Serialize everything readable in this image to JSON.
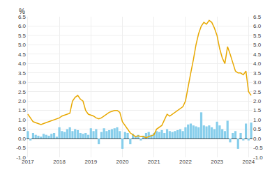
{
  "chart_data": {
    "type": "bar",
    "ylabel": "%",
    "categories": [
      "2017",
      null,
      null,
      null,
      null,
      null,
      null,
      null,
      null,
      null,
      null,
      null,
      "2018",
      null,
      null,
      null,
      null,
      null,
      null,
      null,
      null,
      null,
      null,
      null,
      "2019",
      null,
      null,
      null,
      null,
      null,
      null,
      null,
      null,
      null,
      null,
      null,
      "2020",
      null,
      null,
      null,
      null,
      null,
      null,
      null,
      null,
      null,
      null,
      null,
      "2021",
      null,
      null,
      null,
      null,
      null,
      null,
      null,
      null,
      null,
      null,
      null,
      "2022",
      null,
      null,
      null,
      null,
      null,
      null,
      null,
      null,
      null,
      null,
      null,
      "2023",
      null,
      null,
      null,
      null,
      null,
      null,
      null,
      null,
      null,
      null,
      null,
      "2024",
      null
    ],
    "series": [
      {
        "type": "bar",
        "color": "#87CEEB",
        "values": [
          0.4,
          -0.1,
          0.3,
          0.2,
          0.15,
          0.1,
          0.25,
          0.2,
          0.15,
          0.25,
          0.3,
          0.1,
          0.6,
          0.4,
          0.35,
          0.5,
          0.6,
          0.4,
          0.5,
          0.45,
          0.3,
          0.25,
          0.3,
          0.2,
          0.55,
          0.4,
          0.5,
          -0.3,
          0.35,
          0.55,
          0.4,
          0.45,
          0.5,
          0.55,
          0.6,
          0.4,
          -0.55,
          0.35,
          0.3,
          -0.3,
          0.25,
          0.1,
          0.2,
          -0.1,
          0.15,
          0.3,
          0.35,
          0.2,
          0.3,
          0.4,
          0.35,
          0.45,
          0.3,
          0.5,
          0.4,
          0.35,
          0.4,
          0.45,
          0.5,
          0.4,
          0.6,
          0.75,
          0.8,
          0.7,
          0.65,
          0.6,
          1.4,
          0.7,
          0.65,
          0.7,
          0.6,
          0.5,
          0.9,
          0.7,
          0.5,
          0.4,
          0.95,
          -0.2,
          0.3,
          0.4,
          -0.55,
          0.3,
          -0.1,
          0.8,
          -0.1,
          0.85
        ]
      },
      {
        "type": "line",
        "axis": "y2",
        "color": "#E8A800",
        "values": [
          1.3,
          1.1,
          0.9,
          0.85,
          0.8,
          0.75,
          0.8,
          0.85,
          0.9,
          0.95,
          1.0,
          1.05,
          1.1,
          1.2,
          1.25,
          1.3,
          1.35,
          2.0,
          2.2,
          2.3,
          2.1,
          2.0,
          1.5,
          1.3,
          1.25,
          1.2,
          1.1,
          1.05,
          1.1,
          1.2,
          1.3,
          1.4,
          1.45,
          1.5,
          1.5,
          1.4,
          0.9,
          0.7,
          0.5,
          0.3,
          0.2,
          0.1,
          0.15,
          0.1,
          0.1,
          0.05,
          0.1,
          0.15,
          0.2,
          0.5,
          0.6,
          0.7,
          1.0,
          1.3,
          1.2,
          1.3,
          1.4,
          1.5,
          1.6,
          1.7,
          2.0,
          2.8,
          3.5,
          4.2,
          5.0,
          5.6,
          6.0,
          6.2,
          6.1,
          6.3,
          6.2,
          5.9,
          5.5,
          4.8,
          4.3,
          4.0,
          4.9,
          4.5,
          4.0,
          3.6,
          3.5,
          3.5,
          3.4,
          3.6,
          2.5,
          2.3
        ]
      }
    ],
    "ylim": [
      -1.0,
      6.5
    ],
    "yticks": [
      {
        "value": -1,
        "label": "-1.0"
      },
      -0.5,
      {
        "value": 0,
        "label": "0.0"
      },
      0.5,
      {
        "value": 1,
        "label": "1.0"
      },
      1.5,
      {
        "value": 2,
        "label": "2.0"
      },
      2.5,
      {
        "value": 3,
        "label": "3.0"
      },
      3.5,
      {
        "value": 4,
        "label": "4.0"
      },
      4.5,
      {
        "value": 5,
        "label": "5.0"
      },
      5.5,
      {
        "value": 6,
        "label": "6.0"
      },
      6.5
    ],
    "y2lim": [
      -1.0,
      6.5
    ],
    "y2ticks": [
      {
        "value": -1,
        "label": "-1.0"
      },
      -0.5,
      {
        "value": 0,
        "label": "0.0"
      },
      0.5,
      {
        "value": 1,
        "label": "1.0"
      },
      1.5,
      {
        "value": 2,
        "label": "2.0"
      },
      2.5,
      {
        "value": 3,
        "label": "3.0"
      },
      3.5,
      {
        "value": 4,
        "label": "4.0"
      },
      4.5,
      {
        "value": 5,
        "label": "5.0"
      },
      5.5,
      {
        "value": 6,
        "label": "6.0"
      },
      6.5
    ],
    "grid": true
  }
}
